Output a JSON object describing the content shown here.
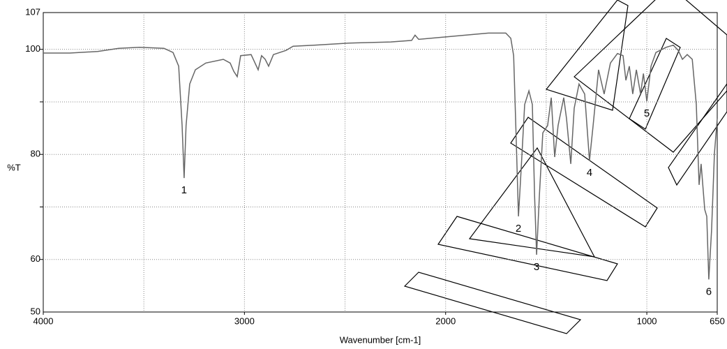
{
  "chart_data": {
    "type": "line",
    "x_label": "Wavenumber [cm-1]",
    "y_label": "%T",
    "xlim": [
      4000,
      650
    ],
    "ylim": [
      50,
      107
    ],
    "xticks": [
      4000,
      3000,
      2000,
      1000,
      650
    ],
    "yticks": [
      50,
      60,
      80,
      100,
      107
    ],
    "grid_x": [
      3500,
      3000,
      2500,
      2000,
      1500,
      1000
    ],
    "grid_y": [
      60,
      70,
      80,
      90,
      100
    ],
    "color": "#666666",
    "x": [
      4000,
      3868,
      3730,
      3625,
      3521,
      3400,
      3355,
      3327,
      3310,
      3300,
      3290,
      3272,
      3244,
      3192,
      3105,
      3071,
      3053,
      3036,
      3019,
      2967,
      2932,
      2915,
      2897,
      2880,
      2856,
      2793,
      2758,
      2654,
      2481,
      2273,
      2169,
      2152,
      2134,
      1961,
      1787,
      1701,
      1676,
      1662,
      1649,
      1638,
      1624,
      1607,
      1586,
      1569,
      1558,
      1548,
      1534,
      1517,
      1493,
      1475,
      1458,
      1441,
      1413,
      1399,
      1378,
      1361,
      1337,
      1309,
      1285,
      1267,
      1240,
      1212,
      1181,
      1146,
      1118,
      1104,
      1087,
      1070,
      1052,
      1031,
      1017,
      1000,
      979,
      955,
      903,
      868,
      844,
      823,
      799,
      774,
      754,
      740,
      730,
      712,
      702,
      692,
      678,
      664,
      650
    ],
    "values": [
      99.3,
      99.3,
      99.6,
      100.2,
      100.4,
      100.2,
      99.4,
      96.8,
      85.5,
      75.5,
      85.5,
      93.4,
      96.1,
      97.4,
      98.1,
      97.4,
      95.8,
      94.8,
      98.8,
      99.0,
      96.1,
      98.8,
      98.1,
      96.8,
      99.0,
      99.8,
      100.6,
      100.8,
      101.2,
      101.4,
      101.7,
      102.7,
      101.9,
      102.5,
      103.1,
      103.1,
      102.1,
      98.8,
      82.8,
      68.2,
      77.5,
      89.5,
      92.1,
      89.5,
      72.2,
      60.9,
      72.2,
      84.1,
      85.5,
      90.8,
      79.5,
      85.5,
      90.8,
      86.8,
      78.2,
      88.8,
      93.4,
      91.5,
      78.8,
      85.5,
      96.1,
      91.5,
      97.4,
      99.2,
      98.8,
      94.1,
      96.8,
      91.5,
      96.1,
      91.5,
      95.4,
      90.1,
      96.8,
      99.4,
      100.4,
      100.8,
      99.8,
      98.1,
      99.0,
      98.1,
      89.5,
      74.2,
      78.2,
      69.5,
      68.2,
      56.2,
      65.6,
      80.2,
      86.8
    ],
    "annotations": [
      {
        "text": "1",
        "x": 3300,
        "y": 75.5
      },
      {
        "text": "2",
        "x": 1638,
        "y": 68.2
      },
      {
        "text": "3",
        "x": 1548,
        "y": 60.9
      },
      {
        "text": "4",
        "x": 1285,
        "y": 78.8
      },
      {
        "text": "5",
        "x": 1000,
        "y": 90.1
      },
      {
        "text": "6",
        "x": 692,
        "y": 56.2
      }
    ]
  }
}
